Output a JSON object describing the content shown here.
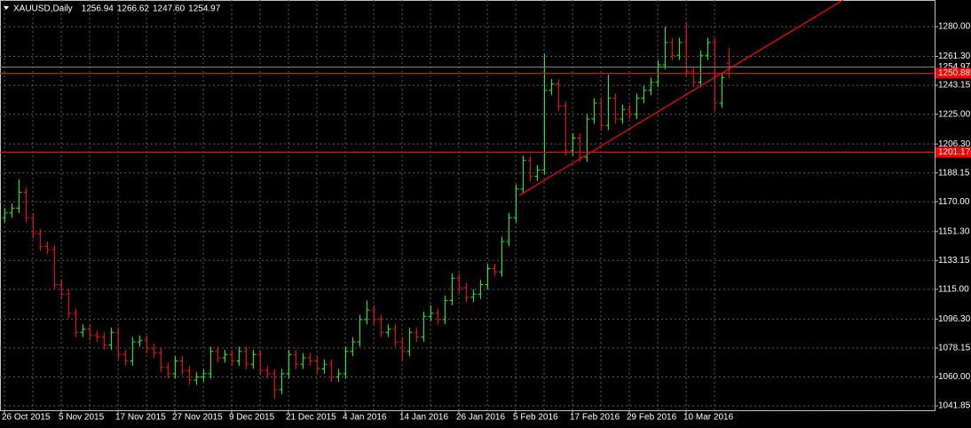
{
  "chart_data": {
    "type": "ohlc",
    "title": "XAUUSD,Daily",
    "header_values": [
      "1256.94",
      "1266.62",
      "1247.60",
      "1254.97"
    ],
    "categories": [
      "26 Oct 2015",
      null,
      null,
      null,
      null,
      null,
      null,
      null,
      "5 Nov 2015",
      null,
      null,
      null,
      null,
      null,
      null,
      null,
      "17 Nov 2015",
      null,
      null,
      null,
      null,
      null,
      null,
      null,
      "27 Nov 2015",
      null,
      null,
      null,
      null,
      null,
      null,
      null,
      "9 Dec 2015",
      null,
      null,
      null,
      null,
      null,
      null,
      null,
      "21 Dec 2015",
      null,
      null,
      null,
      null,
      null,
      null,
      null,
      "4 Jan 2016",
      null,
      null,
      null,
      null,
      null,
      null,
      null,
      "14 Jan 2016",
      null,
      null,
      null,
      null,
      null,
      null,
      null,
      "26 Jan 2016",
      null,
      null,
      null,
      null,
      null,
      null,
      null,
      "5 Feb 2016",
      null,
      null,
      null,
      null,
      null,
      null,
      null,
      "17 Feb 2016",
      null,
      null,
      null,
      null,
      null,
      null,
      null,
      "29 Feb 2016",
      null,
      null,
      null,
      null,
      null,
      null,
      null,
      "10 Mar 2016",
      null,
      null,
      null,
      null,
      null,
      null
    ],
    "opens": [
      1160,
      1163,
      1166,
      1176,
      1160,
      1150,
      1142,
      1140,
      1118,
      1112,
      1100,
      1088,
      1090,
      1086,
      1085,
      1080,
      1088,
      1074,
      1070,
      1082,
      1083,
      1078,
      1075,
      1066,
      1062,
      1070,
      1064,
      1058,
      1060,
      1062,
      1076,
      1072,
      1074,
      1070,
      1076,
      1068,
      1074,
      1064,
      1062,
      1052,
      1062,
      1074,
      1068,
      1072,
      1070,
      1065,
      1068,
      1060,
      1062,
      1076,
      1082,
      1096,
      1102,
      1096,
      1088,
      1090,
      1082,
      1076,
      1088,
      1085,
      1098,
      1100,
      1096,
      1108,
      1122,
      1116,
      1110,
      1112,
      1118,
      1128,
      1126,
      1145,
      1160,
      1178,
      1196,
      1186,
      1190,
      1240,
      1244,
      1230,
      1202,
      1210,
      1198,
      1222,
      1232,
      1218,
      1235,
      1222,
      1228,
      1225,
      1235,
      1240,
      1245,
      1256,
      1270,
      1262,
      1270,
      1252,
      1245,
      1262,
      1270,
      1232,
      1256.94
    ],
    "highs": [
      1166,
      1169,
      1184,
      1179,
      1163,
      1153,
      1145,
      1143,
      1121,
      1115,
      1103,
      1093,
      1093,
      1089,
      1088,
      1091,
      1091,
      1077,
      1085,
      1086,
      1086,
      1081,
      1078,
      1069,
      1073,
      1073,
      1067,
      1063,
      1065,
      1079,
      1079,
      1077,
      1077,
      1079,
      1079,
      1077,
      1077,
      1067,
      1065,
      1065,
      1077,
      1077,
      1075,
      1075,
      1073,
      1071,
      1071,
      1065,
      1079,
      1085,
      1099,
      1108,
      1105,
      1099,
      1093,
      1093,
      1085,
      1091,
      1091,
      1101,
      1105,
      1103,
      1111,
      1125,
      1125,
      1119,
      1115,
      1121,
      1131,
      1131,
      1148,
      1163,
      1181,
      1199,
      1199,
      1193,
      1263,
      1247,
      1247,
      1233,
      1213,
      1213,
      1225,
      1235,
      1235,
      1250,
      1238,
      1231,
      1231,
      1238,
      1243,
      1248,
      1259,
      1280,
      1273,
      1273,
      1283,
      1255,
      1265,
      1273,
      1273,
      1251,
      1266.62
    ],
    "lows": [
      1157,
      1160,
      1163,
      1157,
      1147,
      1139,
      1137,
      1115,
      1109,
      1097,
      1085,
      1085,
      1083,
      1082,
      1077,
      1077,
      1071,
      1067,
      1067,
      1079,
      1075,
      1072,
      1063,
      1059,
      1059,
      1061,
      1055,
      1055,
      1057,
      1059,
      1069,
      1069,
      1067,
      1067,
      1065,
      1065,
      1061,
      1059,
      1046,
      1049,
      1059,
      1065,
      1065,
      1067,
      1062,
      1062,
      1057,
      1057,
      1059,
      1073,
      1079,
      1093,
      1093,
      1085,
      1085,
      1079,
      1070,
      1073,
      1082,
      1082,
      1095,
      1093,
      1093,
      1105,
      1113,
      1107,
      1107,
      1109,
      1115,
      1123,
      1123,
      1142,
      1157,
      1175,
      1183,
      1183,
      1187,
      1237,
      1227,
      1199,
      1199,
      1195,
      1195,
      1219,
      1215,
      1215,
      1219,
      1219,
      1222,
      1222,
      1232,
      1237,
      1242,
      1253,
      1259,
      1259,
      1249,
      1242,
      1242,
      1259,
      1227,
      1229,
      1247.6
    ],
    "closes": [
      1163,
      1166,
      1176,
      1160,
      1150,
      1142,
      1140,
      1118,
      1112,
      1100,
      1088,
      1090,
      1086,
      1085,
      1080,
      1088,
      1074,
      1070,
      1082,
      1083,
      1078,
      1075,
      1066,
      1062,
      1070,
      1064,
      1058,
      1060,
      1062,
      1076,
      1072,
      1074,
      1070,
      1076,
      1068,
      1074,
      1064,
      1062,
      1052,
      1062,
      1074,
      1068,
      1072,
      1070,
      1065,
      1068,
      1060,
      1062,
      1076,
      1082,
      1096,
      1102,
      1096,
      1088,
      1090,
      1082,
      1076,
      1088,
      1085,
      1098,
      1100,
      1096,
      1108,
      1122,
      1116,
      1110,
      1112,
      1118,
      1128,
      1126,
      1145,
      1160,
      1178,
      1196,
      1186,
      1190,
      1240,
      1244,
      1230,
      1202,
      1210,
      1198,
      1222,
      1232,
      1218,
      1235,
      1222,
      1228,
      1225,
      1235,
      1240,
      1245,
      1256,
      1270,
      1262,
      1270,
      1252,
      1245,
      1262,
      1270,
      1232,
      1248,
      1254.97
    ],
    "up_color": "#00ff00",
    "down_color": "#ff0000",
    "ylim": [
      1039.07,
      1296.73
    ],
    "yticks": [
      {
        "value": 1280,
        "label": "1280.00"
      },
      {
        "value": 1261.3,
        "label": "1261.30"
      },
      {
        "value": 1243.15,
        "label": "1243.15"
      },
      {
        "value": 1225,
        "label": "1225.00"
      },
      {
        "value": 1206.3,
        "label": "1206.30"
      },
      {
        "value": 1188.15,
        "label": "1188.15"
      },
      {
        "value": 1170,
        "label": "1170.00"
      },
      {
        "value": 1151.3,
        "label": "1151.30"
      },
      {
        "value": 1133.15,
        "label": "1133.15"
      },
      {
        "value": 1115,
        "label": "1115.00"
      },
      {
        "value": 1096.3,
        "label": "1096.30"
      },
      {
        "value": 1078.15,
        "label": "1078.15"
      },
      {
        "value": 1060,
        "label": "1060.00"
      },
      {
        "value": 1041.85,
        "label": "1041.85"
      }
    ],
    "price_lines": [
      {
        "value": 1254.97,
        "label": "1254.97",
        "color": "#808080"
      },
      {
        "value": 1250.88,
        "label": "1250.88",
        "color": "#ff0000"
      },
      {
        "value": 1201.17,
        "label": "1201.17",
        "color": "#ff0000"
      }
    ],
    "trendline": {
      "x": [
        72.5,
        118.1
      ],
      "y": [
        1174,
        1296.7
      ],
      "color": "#ff0000"
    },
    "grid": true
  }
}
